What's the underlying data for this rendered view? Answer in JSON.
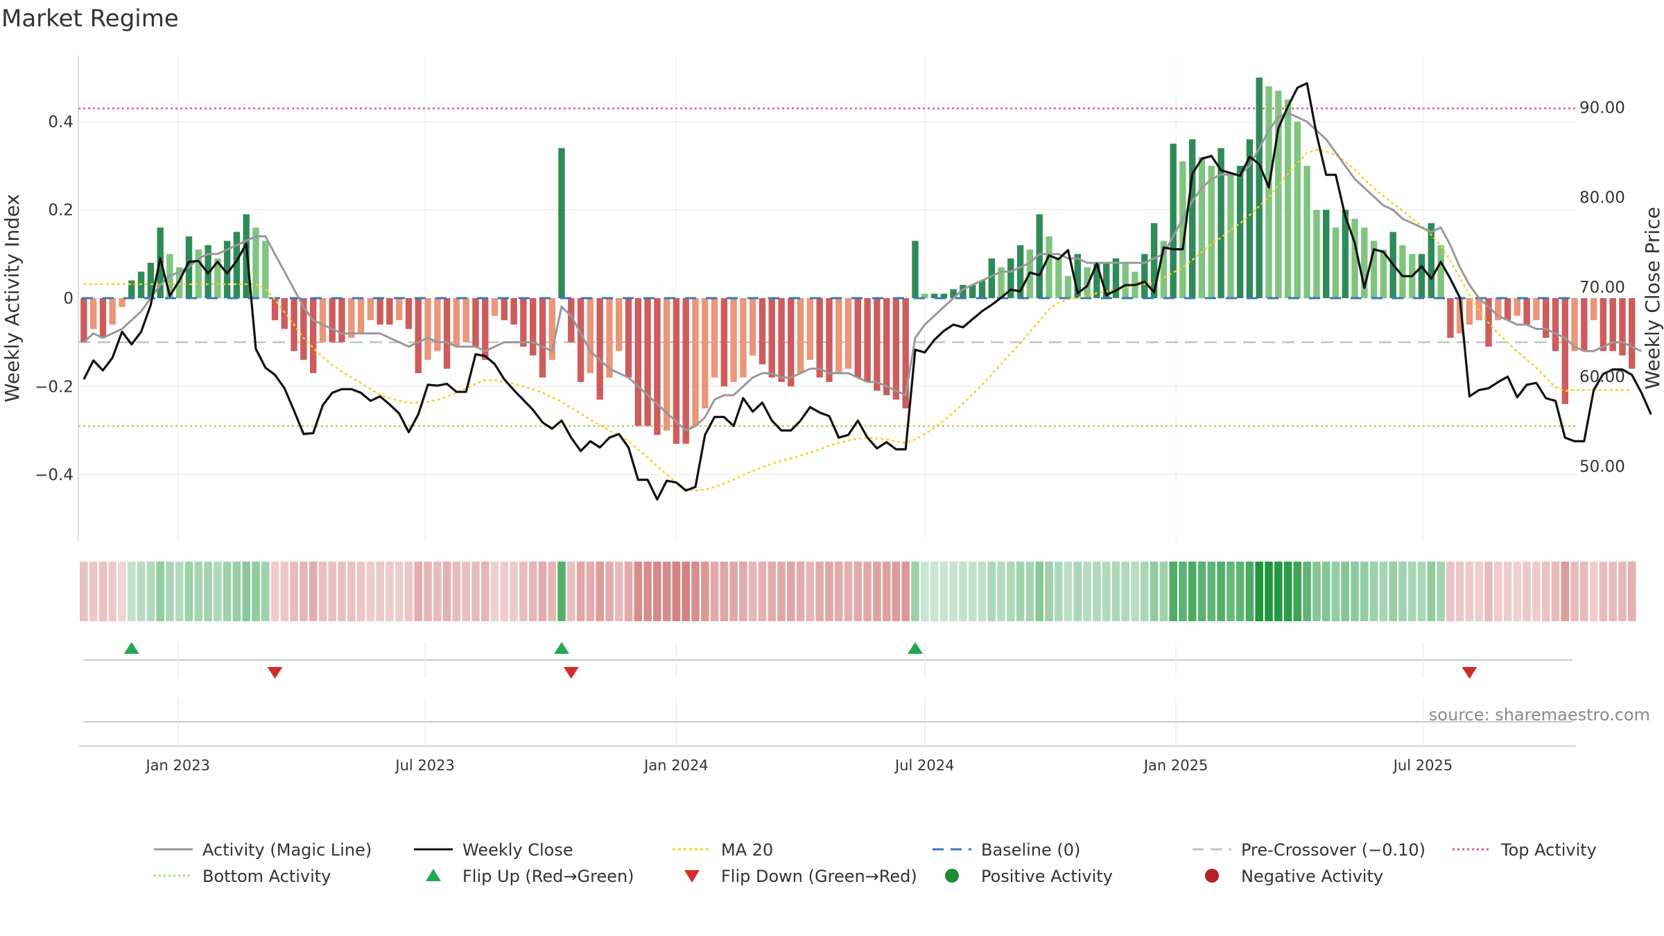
{
  "chart_data": {
    "type": "bar",
    "title": "Market Regime",
    "source": "source: sharemaestro.com",
    "ylabel_left": "Weekly Activity Index",
    "ylabel_right": "Weekly Close Price",
    "ylim_left": [
      -0.55,
      0.55
    ],
    "ylim_right": [
      41.7,
      95.8
    ],
    "left_ticks": [
      "0.4",
      "0.2",
      "0",
      "−0.2",
      "−0.4"
    ],
    "left_tick_values": [
      0.4,
      0.2,
      0,
      -0.2,
      -0.4
    ],
    "right_ticks": [
      "90.00",
      "80.00",
      "70.00",
      "60.00",
      "50.00"
    ],
    "right_tick_values": [
      90,
      80,
      70,
      60,
      50
    ],
    "x_ticks": [
      "Jan 2023",
      "Jul 2023",
      "Jan 2024",
      "Jul 2024",
      "Jan 2025",
      "Jul 2025"
    ],
    "x_tick_dates": [
      "2023-01-01",
      "2023-07-01",
      "2024-01-01",
      "2024-07-01",
      "2025-01-01",
      "2025-07-01"
    ],
    "x_range": [
      "2022-10-20",
      "2025-10-21"
    ],
    "first_week": "2022-10-24",
    "reference_lines": {
      "top_activity": 0.43,
      "bottom_activity": -0.29,
      "pre_crossover": -0.1,
      "baseline": 0
    },
    "series": [
      {
        "name": "Activity",
        "type": "bar",
        "values": [
          -0.1,
          -0.07,
          -0.09,
          -0.06,
          -0.02,
          0.04,
          0.06,
          0.08,
          0.16,
          0.1,
          0.07,
          0.14,
          0.11,
          0.12,
          0.09,
          0.13,
          0.15,
          0.19,
          0.16,
          0.13,
          -0.05,
          -0.07,
          -0.12,
          -0.14,
          -0.17,
          -0.1,
          -0.1,
          -0.1,
          -0.09,
          -0.08,
          -0.05,
          -0.06,
          -0.06,
          -0.05,
          -0.07,
          -0.17,
          -0.14,
          -0.12,
          -0.16,
          -0.11,
          -0.1,
          -0.11,
          -0.14,
          -0.04,
          -0.05,
          -0.06,
          -0.11,
          -0.13,
          -0.18,
          -0.14,
          0.34,
          -0.1,
          -0.19,
          -0.17,
          -0.23,
          -0.18,
          -0.12,
          -0.18,
          -0.29,
          -0.29,
          -0.31,
          -0.3,
          -0.33,
          -0.33,
          -0.29,
          -0.25,
          -0.18,
          -0.2,
          -0.19,
          -0.18,
          -0.13,
          -0.15,
          -0.18,
          -0.19,
          -0.2,
          -0.17,
          -0.14,
          -0.18,
          -0.19,
          -0.17,
          -0.16,
          -0.18,
          -0.19,
          -0.21,
          -0.22,
          -0.23,
          -0.25,
          0.13,
          0.01,
          0.01,
          0.01,
          0.02,
          0.03,
          0.03,
          0.04,
          0.09,
          0.07,
          0.09,
          0.12,
          0.11,
          0.19,
          0.14,
          0.09,
          0.05,
          0.1,
          0.07,
          0.08,
          0.08,
          0.09,
          0.08,
          0.06,
          0.1,
          0.17,
          0.13,
          0.35,
          0.31,
          0.36,
          0.32,
          0.3,
          0.34,
          0.28,
          0.3,
          0.36,
          0.5,
          0.48,
          0.47,
          0.45,
          0.4,
          0.3,
          0.2,
          0.2,
          0.16,
          0.2,
          0.18,
          0.16,
          0.13,
          0.11,
          0.15,
          0.12,
          0.1,
          0.1,
          0.17,
          0.12,
          -0.09,
          -0.08,
          -0.06,
          -0.05,
          -0.11,
          -0.05,
          -0.05,
          -0.04,
          -0.06,
          -0.05,
          -0.09,
          -0.12,
          -0.24,
          -0.12,
          -0.12,
          -0.05,
          -0.12,
          -0.12,
          -0.13,
          -0.16
        ]
      },
      {
        "name": "Activity (Magic Line)",
        "type": "line",
        "values": [
          -0.1,
          -0.08,
          -0.09,
          -0.08,
          -0.07,
          -0.05,
          -0.03,
          0.0,
          0.03,
          0.05,
          0.06,
          0.07,
          0.09,
          0.1,
          0.1,
          0.11,
          0.12,
          0.13,
          0.14,
          0.14,
          0.1,
          0.06,
          0.02,
          -0.02,
          -0.05,
          -0.06,
          -0.07,
          -0.08,
          -0.08,
          -0.08,
          -0.08,
          -0.08,
          -0.09,
          -0.1,
          -0.11,
          -0.1,
          -0.09,
          -0.1,
          -0.1,
          -0.11,
          -0.11,
          -0.11,
          -0.12,
          -0.11,
          -0.1,
          -0.1,
          -0.1,
          -0.1,
          -0.11,
          -0.12,
          -0.02,
          -0.04,
          -0.08,
          -0.12,
          -0.14,
          -0.16,
          -0.17,
          -0.18,
          -0.2,
          -0.22,
          -0.24,
          -0.26,
          -0.28,
          -0.3,
          -0.29,
          -0.27,
          -0.23,
          -0.22,
          -0.22,
          -0.2,
          -0.18,
          -0.17,
          -0.17,
          -0.18,
          -0.18,
          -0.17,
          -0.16,
          -0.16,
          -0.17,
          -0.17,
          -0.17,
          -0.18,
          -0.19,
          -0.19,
          -0.2,
          -0.21,
          -0.22,
          -0.09,
          -0.06,
          -0.04,
          -0.02,
          0.0,
          0.02,
          0.03,
          0.04,
          0.05,
          0.06,
          0.06,
          0.07,
          0.08,
          0.1,
          0.1,
          0.1,
          0.09,
          0.09,
          0.08,
          0.08,
          0.08,
          0.08,
          0.08,
          0.08,
          0.08,
          0.09,
          0.1,
          0.14,
          0.18,
          0.22,
          0.25,
          0.27,
          0.28,
          0.28,
          0.28,
          0.3,
          0.34,
          0.38,
          0.41,
          0.42,
          0.41,
          0.4,
          0.38,
          0.36,
          0.33,
          0.3,
          0.27,
          0.25,
          0.23,
          0.21,
          0.2,
          0.18,
          0.17,
          0.16,
          0.15,
          0.16,
          0.12,
          0.07,
          0.03,
          0.0,
          -0.02,
          -0.04,
          -0.05,
          -0.06,
          -0.06,
          -0.07,
          -0.07,
          -0.08,
          -0.09,
          -0.11,
          -0.12,
          -0.12,
          -0.11,
          -0.1,
          -0.1,
          -0.11,
          -0.12
        ]
      },
      {
        "name": "Weekly Close",
        "type": "line",
        "axis": "right",
        "values": [
          59.7,
          61.8,
          60.7,
          62.1,
          65.0,
          63.6,
          65.0,
          68.0,
          73.2,
          69.0,
          70.7,
          72.8,
          72.9,
          71.5,
          72.8,
          71.5,
          72.9,
          74.8,
          63.1,
          61.0,
          60.2,
          58.7,
          56.2,
          53.6,
          53.7,
          56.8,
          58.2,
          58.6,
          58.6,
          58.2,
          57.3,
          57.8,
          56.9,
          55.9,
          53.8,
          55.8,
          59.1,
          59.0,
          59.2,
          58.3,
          58.3,
          62.5,
          62.3,
          61.4,
          59.7,
          58.5,
          57.4,
          56.3,
          54.9,
          54.2,
          55.1,
          53.2,
          51.7,
          52.8,
          52.1,
          53.2,
          53.6,
          52.1,
          48.5,
          48.5,
          46.3,
          48.4,
          48.2,
          47.3,
          47.7,
          53.5,
          55.5,
          55.5,
          54.5,
          57.6,
          56.1,
          57.1,
          55.1,
          54.0,
          54.0,
          55.1,
          56.6,
          56.0,
          55.6,
          53.2,
          53.5,
          55.1,
          53.2,
          52.0,
          52.7,
          51.9,
          51.9,
          63.0,
          62.7,
          64.1,
          65.1,
          65.8,
          65.5,
          66.4,
          67.3,
          68.0,
          68.8,
          69.7,
          69.5,
          71.6,
          71.3,
          73.5,
          73.1,
          74.1,
          69.3,
          70.1,
          72.6,
          69.1,
          69.6,
          70.2,
          70.2,
          70.6,
          69.4,
          74.4,
          74.2,
          74.2,
          82.6,
          84.3,
          84.6,
          83.0,
          82.7,
          82.4,
          84.5,
          83.7,
          81.1,
          87.7,
          90.1,
          92.2,
          92.7,
          87.0,
          82.5,
          82.5,
          77.9,
          74.9,
          69.9,
          74.2,
          73.9,
          72.5,
          71.2,
          71.2,
          72.3,
          70.9,
          72.8,
          70.9,
          68.8,
          57.8,
          58.5,
          58.7,
          59.4,
          60.0,
          57.7,
          59.1,
          59.3,
          57.6,
          57.3,
          53.2,
          52.8,
          52.8,
          58.5,
          60.3,
          60.8,
          60.8,
          60.2,
          58.2,
          55.8
        ]
      },
      {
        "name": "MA 20",
        "type": "line",
        "axis": "right",
        "values": [
          70.3,
          70.3,
          70.3,
          70.3,
          70.3,
          70.3,
          70.3,
          70.3,
          70.3,
          70.3,
          70.3,
          70.3,
          70.3,
          70.3,
          70.3,
          70.3,
          70.3,
          70.3,
          70.3,
          69.8,
          68.6,
          67.2,
          65.8,
          64.3,
          63.2,
          62.2,
          61.3,
          60.6,
          59.9,
          59.3,
          58.6,
          58.0,
          57.6,
          57.3,
          57.1,
          57.1,
          57.2,
          57.4,
          57.8,
          58.2,
          58.7,
          59.2,
          59.6,
          59.6,
          59.4,
          59.2,
          58.9,
          58.6,
          58.2,
          57.7,
          57.2,
          56.5,
          55.9,
          55.2,
          54.6,
          54.0,
          53.5,
          52.8,
          51.9,
          51.0,
          50.0,
          49.1,
          48.2,
          47.5,
          47.3,
          47.4,
          47.7,
          48.1,
          48.5,
          49.0,
          49.5,
          49.9,
          50.3,
          50.6,
          50.9,
          51.2,
          51.5,
          51.9,
          52.3,
          52.6,
          52.9,
          53.1,
          53.2,
          53.1,
          53.0,
          52.8,
          52.6,
          53.0,
          53.6,
          54.3,
          55.1,
          56.0,
          57.0,
          58.0,
          59.1,
          60.2,
          61.4,
          62.6,
          63.7,
          65.0,
          66.2,
          67.5,
          68.2,
          68.6,
          68.8,
          69.0,
          69.3,
          69.5,
          69.7,
          69.9,
          70.1,
          70.3,
          70.4,
          71.0,
          71.6,
          72.2,
          73.0,
          73.9,
          74.8,
          75.5,
          76.3,
          77.1,
          78.0,
          79.0,
          80.0,
          81.3,
          82.6,
          83.8,
          84.9,
          85.3,
          85.1,
          84.7,
          84.0,
          83.1,
          82.0,
          81.0,
          80.1,
          79.3,
          78.5,
          77.6,
          76.8,
          75.8,
          74.6,
          72.9,
          71.0,
          69.1,
          67.4,
          66.0,
          64.8,
          63.8,
          62.8,
          61.9,
          61.0,
          59.9,
          58.8,
          58.4,
          58.5,
          58.5,
          58.5,
          58.5,
          58.5,
          58.5,
          58.5
        ]
      },
      {
        "name": "Baseline (0)",
        "type": "line",
        "value": 0
      },
      {
        "name": "Pre-Crossover (−0.10)",
        "type": "line",
        "value": -0.1
      },
      {
        "name": "Top Activity",
        "type": "line",
        "value": 0.43
      },
      {
        "name": "Bottom Activity",
        "type": "line",
        "value": -0.29
      }
    ],
    "flip_up_weeks": [
      5,
      50,
      87
    ],
    "flip_down_weeks": [
      20,
      51,
      145
    ],
    "legend_position": "bottom",
    "grid": true
  },
  "legend": {
    "row1": [
      {
        "label": "Activity (Magic Line)",
        "icon": "line-gray"
      },
      {
        "label": "Weekly Close",
        "icon": "line-black"
      },
      {
        "label": "MA 20",
        "icon": "line-yellow-dotted"
      },
      {
        "label": "Baseline (0)",
        "icon": "line-blue-dashed"
      },
      {
        "label": "Pre-Crossover (−0.10)",
        "icon": "line-gray-dashed"
      },
      {
        "label": "Top Activity",
        "icon": "line-pink-dotted"
      }
    ],
    "row2": [
      {
        "label": "Bottom Activity",
        "icon": "line-green-dotted"
      },
      {
        "label": "Flip Up (Red→Green)",
        "icon": "triangle-up-green"
      },
      {
        "label": "Flip Down (Green→Red)",
        "icon": "triangle-down-red"
      },
      {
        "label": "Positive Activity",
        "icon": "circle-green"
      },
      {
        "label": "Negative Activity",
        "icon": "circle-red"
      }
    ]
  },
  "colors": {
    "pos_dark": "#2e8b57",
    "pos_light": "#7fc47f",
    "neg_dark": "#cd5c5c",
    "neg_light": "#e9967a",
    "magic_line": "#999999",
    "weekly_close": "#111111",
    "ma20": "#f2d32a",
    "baseline": "#3a78b5",
    "pre_crossover": "#c4c4c4",
    "top_activity": "#e0607e",
    "bottom_activity": "#a8d86e",
    "flip_up": "#22a851",
    "flip_down": "#d22d2d"
  }
}
